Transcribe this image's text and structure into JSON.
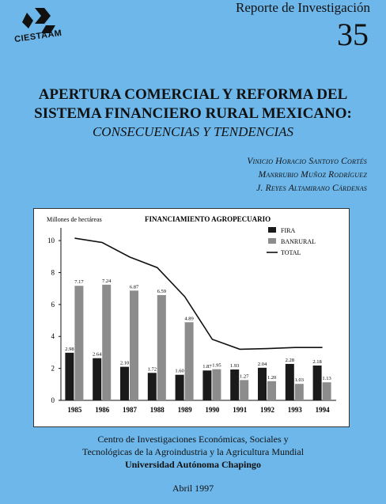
{
  "header": {
    "logo_text": "CIESTAAM",
    "series_label": "Reporte de Investigación",
    "series_number": "35"
  },
  "title": {
    "line1": "APERTURA COMERCIAL Y REFORMA DEL",
    "line2": "SISTEMA FINANCIERO RURAL MEXICANO:",
    "subtitle": "CONSECUENCIAS Y TENDENCIAS"
  },
  "authors": [
    "Vinicio Horacio Santoyo Cortés",
    "Manrrubio Muñoz Rodríguez",
    "J. Reyes Altamirano Cárdenas"
  ],
  "chart_data": {
    "type": "bar",
    "title": "FINANCIAMIENTO AGROPECUARIO",
    "ylabel": "Millones de hectáreas",
    "ylim": [
      0,
      10.5
    ],
    "yticks": [
      0,
      2,
      4,
      6,
      8,
      10
    ],
    "categories": [
      "1985",
      "1986",
      "1987",
      "1988",
      "1989",
      "1990",
      "1991",
      "1992",
      "1993",
      "1994"
    ],
    "series": [
      {
        "name": "FIRA",
        "type": "bar",
        "color": "#1a1a1a",
        "values": [
          2.98,
          2.64,
          2.1,
          1.72,
          1.6,
          1.87,
          1.93,
          2.04,
          2.28,
          2.18
        ],
        "labels": [
          "2.98",
          "2.64",
          "2.10",
          "1.72",
          "1.60",
          "1.87",
          "1.93",
          "2.04",
          "2.28",
          "2.18"
        ]
      },
      {
        "name": "BANRURAL",
        "type": "bar",
        "color": "#8c8c8c",
        "values": [
          7.17,
          7.24,
          6.87,
          6.59,
          4.89,
          1.95,
          1.27,
          1.2,
          1.03,
          1.13
        ],
        "labels": [
          "7.17",
          "7.24",
          "6.87",
          "6.59",
          "4.89",
          "1.95",
          "1.27",
          "1.20",
          "1.03",
          "1.13"
        ]
      },
      {
        "name": "TOTAL",
        "type": "line",
        "color": "#111111",
        "values": [
          10.15,
          9.88,
          8.97,
          8.31,
          6.49,
          3.82,
          3.2,
          3.24,
          3.31,
          3.31
        ]
      }
    ],
    "legend_position": "top-right",
    "grid": false
  },
  "footer": {
    "inst1": "Centro de Investigaciones Económicas, Sociales y",
    "inst2": "Tecnológicas de la Agroindustria y la Agricultura Mundial",
    "inst3": "Universidad Autónoma Chapingo",
    "date": "Abril 1997"
  }
}
